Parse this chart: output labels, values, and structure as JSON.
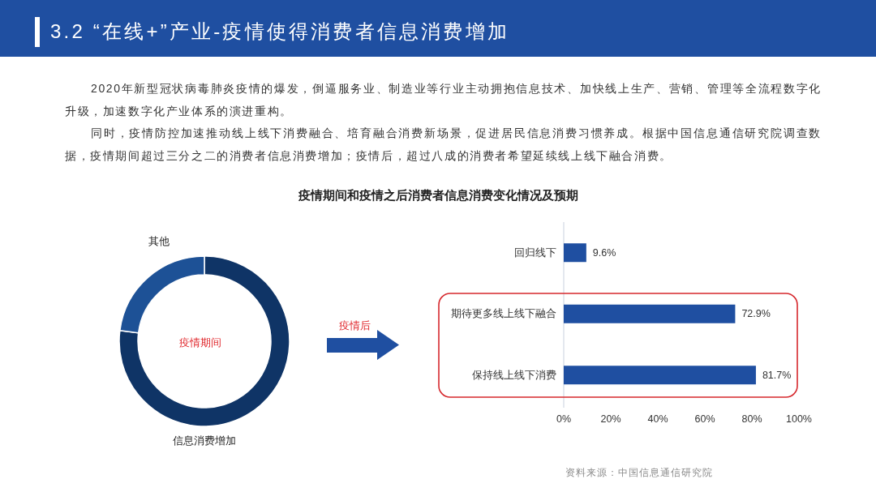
{
  "chart_data": [
    {
      "type": "other",
      "title": "3.2 “在线+”产业-疫情使得消费者信息消费增加",
      "annotations": [
        "2020年新型冠状病毒肺炎疫情的爆发，倒逼服务业、制造业等行业主动拥抱信息技术、加快线上生产、营销、管理等全流程数字化升级，加速数字化产业体系的演进重构。",
        "同时，疫情防控加速推动线上线下消费融合、培育融合消费新场景，促进居民信息消费习惯养成。根据中国信息通信研究院调查数据，疫情期间超过三分之二的消费者信息消费增加；疫情后，超过八成的消费者希望延续线上线下融合消费。",
        "资料来源：中国信息通信研究院"
      ]
    },
    {
      "type": "donut",
      "title": "疫情期间和疫情之后消费者信息消费变化情况及预期",
      "categories": [
        "信息消费增加",
        "其他"
      ],
      "values": [
        77,
        23
      ],
      "colors": [
        "#0f3466",
        "#1d5196"
      ],
      "annotations": [
        "疫情期间"
      ]
    },
    {
      "type": "bar",
      "orientation": "horizontal",
      "categories": [
        "回归线下",
        "期待更多线上线下融合",
        "保持线上线下消费"
      ],
      "values": [
        9.6,
        72.9,
        81.7
      ],
      "color": "#1f4fa1",
      "value_labels": [
        "9.6%",
        "72.9%",
        "81.7%"
      ],
      "xlim": [
        0,
        100
      ],
      "xticks": [
        {
          "value": 0,
          "label": "0%"
        },
        {
          "value": 20,
          "label": "20%"
        },
        {
          "value": 40,
          "label": "40%"
        },
        {
          "value": 60,
          "label": "60%"
        },
        {
          "value": 80,
          "label": "80%"
        },
        {
          "value": 100,
          "label": "100%"
        }
      ],
      "annotations": [
        "疫情后"
      ]
    }
  ]
}
